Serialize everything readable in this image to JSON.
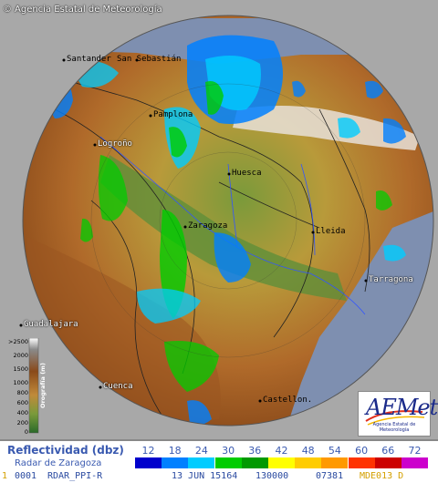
{
  "header": {
    "copyright": "©",
    "agency": "Agencia Estatal de Meteorología"
  },
  "cities": [
    {
      "name": "Santander",
      "id": "santander"
    },
    {
      "name": "San Sebastián",
      "id": "san-sebastian"
    },
    {
      "name": "Pamplona",
      "id": "pamplona"
    },
    {
      "name": "Logroño",
      "id": "logrono"
    },
    {
      "name": "Huesca",
      "id": "huesca"
    },
    {
      "name": "Zaragoza",
      "id": "zaragoza"
    },
    {
      "name": "Lleida",
      "id": "lleida"
    },
    {
      "name": "Tarragona",
      "id": "tarragona"
    },
    {
      "name": "Guadalajara",
      "id": "guadalajara"
    },
    {
      "name": "Cuenca",
      "id": "cuenca"
    },
    {
      "name": "Castellon.",
      "id": "castellon"
    }
  ],
  "orography_legend": {
    "title": "Orografía (m)",
    "levels": [
      ">2500",
      "2000",
      "1500",
      "1000",
      "800",
      "600",
      "400",
      "200",
      "0"
    ]
  },
  "logo": {
    "text": "AEMet",
    "subtitle": "Agencia Estatal de Meteorología"
  },
  "legend": {
    "title": "Reflectividad (dbz)",
    "subtitle": "Radar de Zaragoza",
    "scale": [
      {
        "value": "12",
        "color": "#0000cc"
      },
      {
        "value": "18",
        "color": "#0080ff"
      },
      {
        "value": "24",
        "color": "#00ccff"
      },
      {
        "value": "30",
        "color": "#00cc00"
      },
      {
        "value": "36",
        "color": "#009900"
      },
      {
        "value": "42",
        "color": "#ffff00"
      },
      {
        "value": "48",
        "color": "#ffcc00"
      },
      {
        "value": "54",
        "color": "#ff9900"
      },
      {
        "value": "60",
        "color": "#ff3300"
      },
      {
        "value": "66",
        "color": "#cc0000"
      },
      {
        "value": "72",
        "color": "#cc00cc"
      }
    ]
  },
  "status": {
    "flag": "1",
    "id": "0001",
    "product": "RDAR_PPI-R",
    "date": "13 JUN 15164",
    "time": "130000",
    "code": "07381",
    "tail": "MDE013 D"
  }
}
